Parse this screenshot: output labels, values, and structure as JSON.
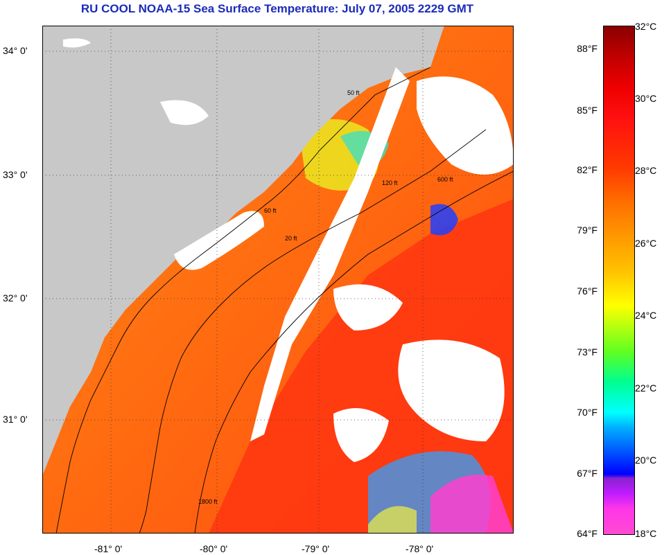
{
  "title": "RU COOL  NOAA-15  Sea Surface Temperature:  July 07, 2005 2229 GMT",
  "latitude_labels": [
    "34° 0'",
    "33° 0'",
    "32° 0'",
    "31° 0'"
  ],
  "longitude_labels": [
    "-81° 0'",
    "-80° 0'",
    "-79° 0'",
    "-78° 0'"
  ],
  "isobath_labels": [
    "50 ft",
    "120 ft",
    "600 ft",
    "60 ft",
    "20 ft",
    "1800 ft"
  ],
  "colorbar": {
    "fahrenheit": [
      "88°F",
      "85°F",
      "82°F",
      "79°F",
      "76°F",
      "73°F",
      "70°F",
      "67°F",
      "64°F"
    ],
    "celsius": [
      "32°C",
      "30°C",
      "28°C",
      "26°C",
      "24°C",
      "22°C",
      "20°C",
      "18°C"
    ]
  },
  "colors": {
    "title": "#1a2bb8",
    "land": "#c8c8c8",
    "cloud": "#ffffff",
    "ocean_warm": "#ff5a0a"
  }
}
